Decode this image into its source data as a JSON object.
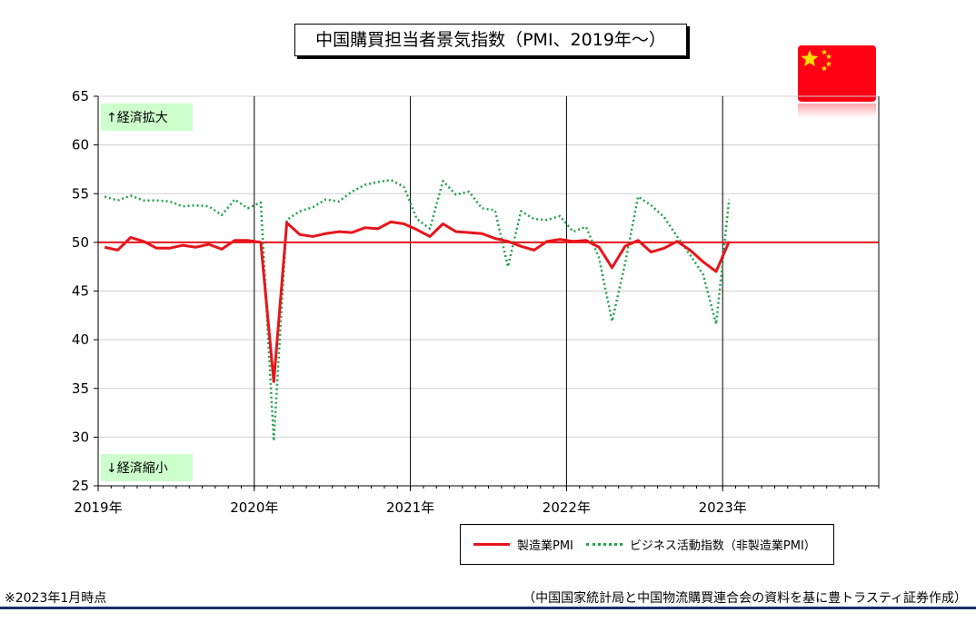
{
  "title": "中国購買担当者景気指数（PMI、2019年～）",
  "flag_icon": "china-flag-icon",
  "colors": {
    "manufacturing": "#e8141b",
    "business": "#22a04b",
    "flag_red": "#ff0015",
    "flag_star": "#ffde00",
    "zone_bg": "#ccffcc"
  },
  "chart_data": {
    "type": "line",
    "title": "中国購買担当者景気指数（PMI、2019年～）",
    "xlabel": "",
    "ylabel": "",
    "x_ticks": [
      "2019年",
      "2020年",
      "2021年",
      "2022年",
      "2023年"
    ],
    "x_start": "2019-01",
    "x_end": "2023-12",
    "ylim": [
      25,
      65
    ],
    "y_ticks": [
      25,
      30,
      35,
      40,
      45,
      50,
      55,
      60,
      65
    ],
    "reference_line": 50,
    "grid": "horizontal",
    "zone_labels": {
      "top": "↑経済拡大",
      "bottom": "↓経済縮小"
    },
    "series": [
      {
        "name": "製造業PMI",
        "style": "solid",
        "start": "2019-01",
        "values": [
          49.5,
          49.2,
          50.5,
          50.1,
          49.4,
          49.4,
          49.7,
          49.5,
          49.8,
          49.3,
          50.2,
          50.2,
          50.0,
          35.7,
          52.0,
          50.8,
          50.6,
          50.9,
          51.1,
          51.0,
          51.5,
          51.4,
          52.1,
          51.9,
          51.3,
          50.6,
          51.9,
          51.1,
          51.0,
          50.9,
          50.4,
          50.1,
          49.6,
          49.2,
          50.1,
          50.3,
          50.1,
          50.2,
          49.5,
          47.4,
          49.6,
          50.2,
          49.0,
          49.4,
          50.1,
          49.2,
          48.0,
          47.0,
          50.1
        ]
      },
      {
        "name": "ビジネス活動指数（非製造業PMI）",
        "style": "dotted",
        "start": "2019-01",
        "values": [
          54.7,
          54.3,
          54.8,
          54.3,
          54.3,
          54.2,
          53.7,
          53.8,
          53.7,
          52.8,
          54.4,
          53.5,
          54.1,
          29.6,
          52.3,
          53.2,
          53.6,
          54.4,
          54.2,
          55.2,
          55.9,
          56.2,
          56.4,
          55.7,
          52.4,
          51.4,
          56.3,
          54.9,
          55.2,
          53.5,
          53.3,
          47.5,
          53.2,
          52.4,
          52.3,
          52.7,
          51.1,
          51.6,
          48.4,
          41.9,
          47.8,
          54.7,
          53.8,
          52.6,
          50.6,
          48.7,
          46.7,
          41.6,
          54.4
        ]
      }
    ]
  },
  "legend": {
    "items": [
      "製造業PMI",
      "ビジネス活動指数（非製造業PMI）"
    ]
  },
  "footnote_left": "※2023年1月時点",
  "footnote_right": "（中国国家統計局と中国物流購買連合会の資料を基に豊トラスティ証券作成）"
}
